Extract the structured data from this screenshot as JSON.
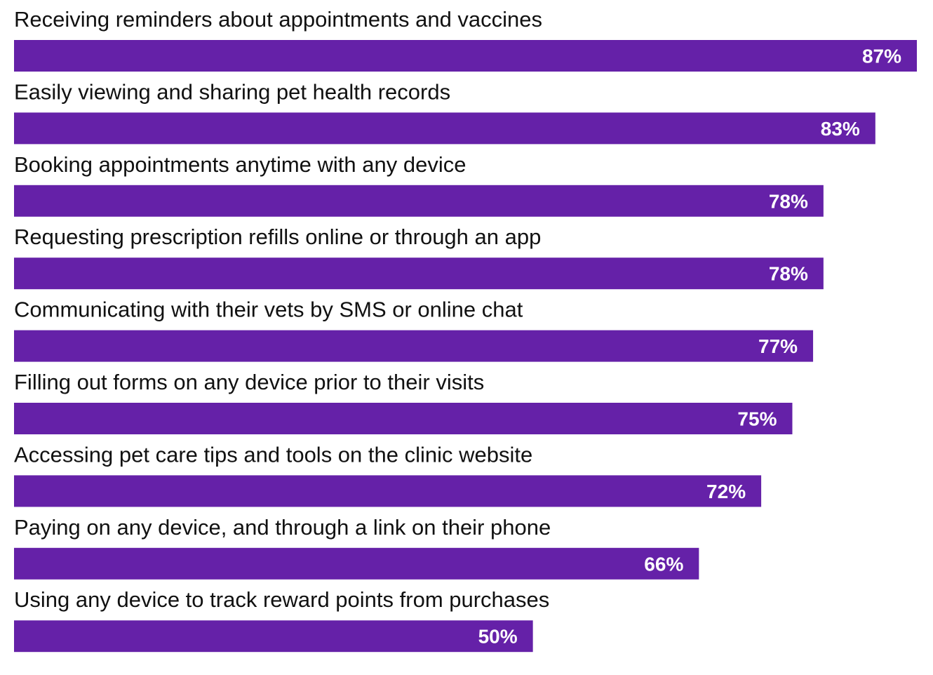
{
  "chart_data": {
    "type": "bar",
    "orientation": "horizontal",
    "title": "",
    "xlabel": "",
    "ylabel": "",
    "xlim": [
      0,
      87
    ],
    "grid": false,
    "legend": "none",
    "value_suffix": "%",
    "categories": [
      "Receiving reminders about appointments and vaccines",
      "Easily viewing and sharing pet health records",
      "Booking appointments anytime with any device",
      "Requesting prescription refills online or through an app",
      "Communicating with their vets by SMS or online chat",
      "Filling out forms on any device prior to their visits",
      "Accessing pet care tips and tools on the clinic website",
      "Paying on any device, and through a link on their phone",
      "Using any device to track reward points from purchases"
    ],
    "values": [
      87,
      83,
      78,
      78,
      77,
      75,
      72,
      66,
      50
    ],
    "value_labels": [
      "87%",
      "83%",
      "78%",
      "78%",
      "77%",
      "75%",
      "72%",
      "66%",
      "50%"
    ],
    "colors": {
      "bar": "#6521a8",
      "value_text": "#ffffff",
      "category_text": "#111111"
    }
  }
}
